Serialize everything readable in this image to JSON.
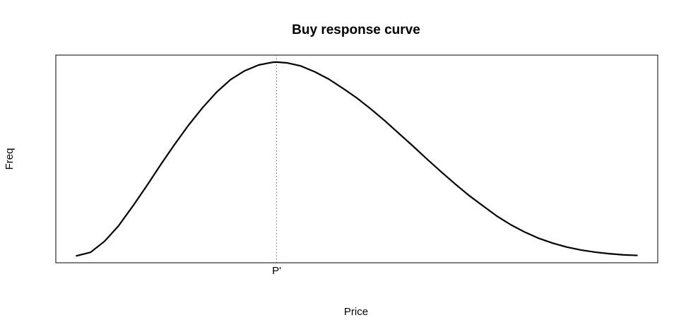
{
  "chart_data": {
    "type": "line",
    "title": "Buy response curve",
    "xlabel": "Price",
    "ylabel": "Freq",
    "grid": false,
    "legend": "none",
    "axes_numeric_ticks": false,
    "x_tick_labels": [
      {
        "label": "P'",
        "x": 0.357
      }
    ],
    "reference_lines": [
      {
        "orientation": "vertical",
        "x": 0.357,
        "style": "dotted",
        "label": "P'"
      }
    ],
    "xlim": [
      -0.037,
      1.037
    ],
    "ylim": [
      -0.036,
      1.036
    ],
    "series": [
      {
        "color": "#000000",
        "x": [
          0.0,
          0.025,
          0.05,
          0.075,
          0.1,
          0.125,
          0.15,
          0.175,
          0.2,
          0.225,
          0.25,
          0.275,
          0.3,
          0.325,
          0.35,
          0.357,
          0.375,
          0.4,
          0.425,
          0.45,
          0.475,
          0.5,
          0.525,
          0.55,
          0.575,
          0.6,
          0.625,
          0.65,
          0.675,
          0.7,
          0.725,
          0.75,
          0.775,
          0.8,
          0.825,
          0.85,
          0.875,
          0.9,
          0.925,
          0.95,
          0.975,
          1.0
        ],
        "y": [
          0.0,
          0.018,
          0.075,
          0.155,
          0.255,
          0.36,
          0.47,
          0.575,
          0.675,
          0.765,
          0.845,
          0.91,
          0.955,
          0.985,
          0.999,
          1.0,
          0.996,
          0.98,
          0.95,
          0.912,
          0.865,
          0.815,
          0.758,
          0.697,
          0.632,
          0.567,
          0.5,
          0.435,
          0.372,
          0.312,
          0.258,
          0.205,
          0.16,
          0.122,
          0.09,
          0.065,
          0.045,
          0.03,
          0.019,
          0.011,
          0.005,
          0.002
        ]
      }
    ]
  }
}
